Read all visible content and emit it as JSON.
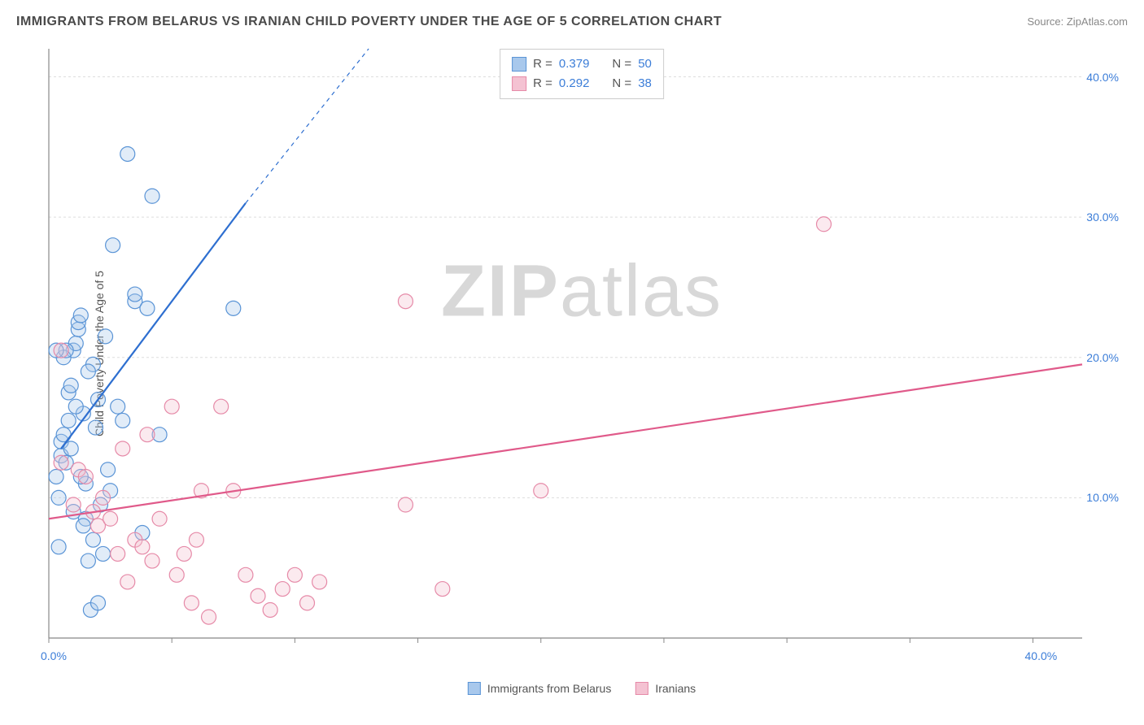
{
  "title": "IMMIGRANTS FROM BELARUS VS IRANIAN CHILD POVERTY UNDER THE AGE OF 5 CORRELATION CHART",
  "source": "Source: ZipAtlas.com",
  "watermark_a": "ZIP",
  "watermark_b": "atlas",
  "y_axis_label": "Child Poverty Under the Age of 5",
  "chart": {
    "type": "scatter",
    "background_color": "#ffffff",
    "grid_color": "#dddddd",
    "axis_color": "#888888",
    "xlim": [
      0,
      42
    ],
    "ylim": [
      0,
      42
    ],
    "x_ticks": [
      0,
      5,
      10,
      15,
      20,
      25,
      30,
      35,
      40
    ],
    "x_tick_labels": {
      "0": "0.0%",
      "40": "40.0%"
    },
    "y_ticks": [
      10,
      20,
      30,
      40
    ],
    "y_tick_labels": {
      "10": "10.0%",
      "20": "20.0%",
      "30": "30.0%",
      "40": "40.0%"
    },
    "marker_radius": 9,
    "marker_stroke_width": 1.2,
    "marker_fill_opacity": 0.35,
    "line_width": 2.2,
    "series": [
      {
        "name": "Immigrants from Belarus",
        "color_stroke": "#5a94d6",
        "color_fill": "#a8c8ec",
        "line_color": "#2e6fd0",
        "r_label": "R =",
        "r_value": "0.379",
        "n_label": "N =",
        "n_value": "50",
        "points": [
          [
            0.3,
            11.5
          ],
          [
            0.4,
            10.0
          ],
          [
            0.5,
            13.0
          ],
          [
            0.5,
            14.0
          ],
          [
            0.6,
            14.5
          ],
          [
            0.7,
            12.5
          ],
          [
            0.8,
            15.5
          ],
          [
            0.8,
            17.5
          ],
          [
            0.9,
            18.0
          ],
          [
            1.0,
            20.5
          ],
          [
            1.0,
            9.0
          ],
          [
            1.1,
            21.0
          ],
          [
            1.2,
            22.0
          ],
          [
            1.2,
            22.5
          ],
          [
            1.3,
            23.0
          ],
          [
            1.4,
            16.0
          ],
          [
            1.5,
            8.5
          ],
          [
            1.5,
            11.0
          ],
          [
            1.6,
            5.5
          ],
          [
            1.7,
            2.0
          ],
          [
            1.8,
            19.5
          ],
          [
            1.9,
            15.0
          ],
          [
            2.0,
            2.5
          ],
          [
            2.1,
            9.5
          ],
          [
            2.2,
            6.0
          ],
          [
            2.3,
            21.5
          ],
          [
            2.4,
            12.0
          ],
          [
            2.5,
            10.5
          ],
          [
            2.6,
            28.0
          ],
          [
            2.8,
            16.5
          ],
          [
            3.0,
            15.5
          ],
          [
            3.2,
            34.5
          ],
          [
            3.5,
            24.0
          ],
          [
            3.5,
            24.5
          ],
          [
            3.8,
            7.5
          ],
          [
            4.0,
            23.5
          ],
          [
            4.2,
            31.5
          ],
          [
            4.5,
            14.5
          ],
          [
            0.4,
            6.5
          ],
          [
            0.6,
            20.0
          ],
          [
            0.7,
            20.5
          ],
          [
            0.9,
            13.5
          ],
          [
            1.1,
            16.5
          ],
          [
            1.3,
            11.5
          ],
          [
            1.4,
            8.0
          ],
          [
            1.6,
            19.0
          ],
          [
            1.8,
            7.0
          ],
          [
            2.0,
            17.0
          ],
          [
            7.5,
            23.5
          ],
          [
            0.3,
            20.5
          ]
        ],
        "trend_line": {
          "x1": 0.5,
          "y1": 13.5,
          "x2": 8.0,
          "y2": 31.0
        },
        "trend_dash": {
          "x1": 8.0,
          "y1": 31.0,
          "x2": 13.0,
          "y2": 42.0
        }
      },
      {
        "name": "Iranians",
        "color_stroke": "#e68aa8",
        "color_fill": "#f4c2d2",
        "line_color": "#e05a8a",
        "r_label": "R =",
        "r_value": "0.292",
        "n_label": "N =",
        "n_value": "38",
        "points": [
          [
            0.5,
            20.5
          ],
          [
            1.0,
            9.5
          ],
          [
            1.2,
            12.0
          ],
          [
            1.5,
            11.5
          ],
          [
            1.8,
            9.0
          ],
          [
            2.0,
            8.0
          ],
          [
            2.2,
            10.0
          ],
          [
            2.5,
            8.5
          ],
          [
            2.8,
            6.0
          ],
          [
            3.0,
            13.5
          ],
          [
            3.2,
            4.0
          ],
          [
            3.5,
            7.0
          ],
          [
            3.8,
            6.5
          ],
          [
            4.0,
            14.5
          ],
          [
            4.2,
            5.5
          ],
          [
            4.5,
            8.5
          ],
          [
            5.0,
            16.5
          ],
          [
            5.2,
            4.5
          ],
          [
            5.5,
            6.0
          ],
          [
            5.8,
            2.5
          ],
          [
            6.0,
            7.0
          ],
          [
            6.2,
            10.5
          ],
          [
            6.5,
            1.5
          ],
          [
            7.0,
            16.5
          ],
          [
            7.5,
            10.5
          ],
          [
            8.0,
            4.5
          ],
          [
            8.5,
            3.0
          ],
          [
            9.0,
            2.0
          ],
          [
            9.5,
            3.5
          ],
          [
            10.0,
            4.5
          ],
          [
            10.5,
            2.5
          ],
          [
            11.0,
            4.0
          ],
          [
            14.5,
            9.5
          ],
          [
            16.0,
            3.5
          ],
          [
            14.5,
            24.0
          ],
          [
            20.0,
            10.5
          ],
          [
            31.5,
            29.5
          ],
          [
            0.5,
            12.5
          ]
        ],
        "trend_line": {
          "x1": 0,
          "y1": 8.5,
          "x2": 42,
          "y2": 19.5
        }
      }
    ]
  },
  "legend_bottom": [
    {
      "label": "Immigrants from Belarus",
      "stroke": "#5a94d6",
      "fill": "#a8c8ec"
    },
    {
      "label": "Iranians",
      "stroke": "#e68aa8",
      "fill": "#f4c2d2"
    }
  ]
}
